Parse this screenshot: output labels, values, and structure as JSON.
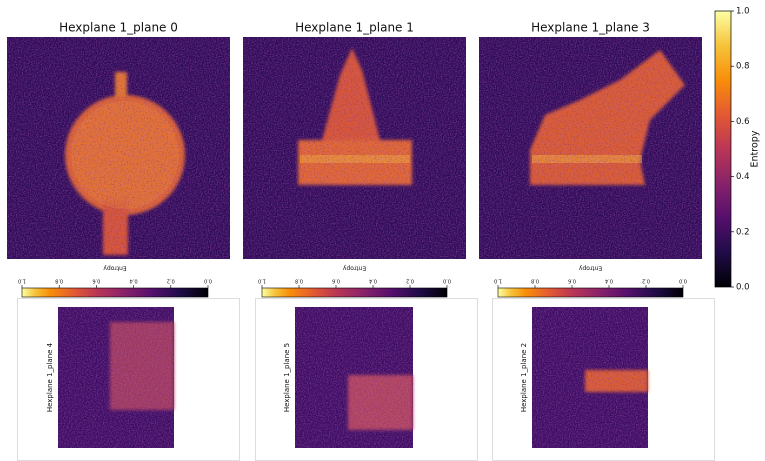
{
  "chart_data": [
    {
      "type": "heatmap",
      "title": "Hexplane 1_plane 0",
      "colorbar": {
        "label": "Entropy",
        "lim": [
          1,
          0
        ],
        "ticks": [
          {
            "value": 1,
            "label": "1.0"
          },
          {
            "value": 0.8,
            "label": "0.8"
          },
          {
            "value": 0.6,
            "label": "0.6"
          },
          {
            "value": 0.4,
            "label": "0.4"
          },
          {
            "value": 0.2,
            "label": "0.2"
          },
          {
            "value": 0,
            "label": "0.0"
          }
        ]
      }
    },
    {
      "type": "heatmap",
      "title": "Hexplane 1_plane 1",
      "colorbar": {
        "label": "Entropy",
        "lim": [
          1,
          0
        ],
        "ticks": [
          {
            "value": 1,
            "label": "1.0"
          },
          {
            "value": 0.8,
            "label": "0.8"
          },
          {
            "value": 0.6,
            "label": "0.6"
          },
          {
            "value": 0.4,
            "label": "0.4"
          },
          {
            "value": 0.2,
            "label": "0.2"
          },
          {
            "value": 0,
            "label": "0.0"
          }
        ]
      }
    },
    {
      "type": "heatmap",
      "title": "Hexplane 1_plane 3",
      "colorbar": {
        "label": "Entropy",
        "lim": [
          1,
          0
        ],
        "ticks": [
          {
            "value": 1,
            "label": "1.0"
          },
          {
            "value": 0.8,
            "label": "0.8"
          },
          {
            "value": 0.6,
            "label": "0.6"
          },
          {
            "value": 0.4,
            "label": "0.4"
          },
          {
            "value": 0.2,
            "label": "0.2"
          },
          {
            "value": 0,
            "label": "0.0"
          }
        ]
      }
    },
    {
      "type": "heatmap",
      "title": "Hexplane 1_plane 4"
    },
    {
      "type": "heatmap",
      "title": "Hexplane 1_plane 5"
    },
    {
      "type": "heatmap",
      "title": "Hexplane 1_plane 2"
    },
    {
      "type": "colorbar",
      "label": "Entropy",
      "lim": [
        0,
        1
      ],
      "ticks": [
        {
          "value": 0,
          "label": "0.0"
        },
        {
          "value": 0.2,
          "label": "0.2"
        },
        {
          "value": 0.4,
          "label": "0.4"
        },
        {
          "value": 0.6,
          "label": "0.6"
        },
        {
          "value": 0.8,
          "label": "0.8"
        },
        {
          "value": 1,
          "label": "1.0"
        }
      ]
    }
  ]
}
